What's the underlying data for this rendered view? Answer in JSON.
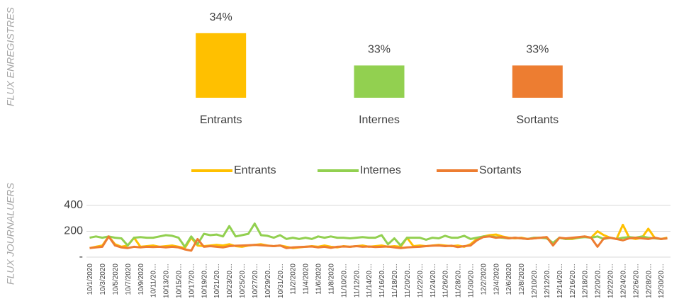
{
  "chart_data": [
    {
      "type": "bar",
      "ylabel": "FLUX ENREGISTRES",
      "categories": [
        "Entrants",
        "Internes",
        "Sortants"
      ],
      "values": [
        34,
        33,
        33
      ],
      "value_labels": [
        "34%",
        "33%",
        "33%"
      ],
      "colors": [
        "#FFC000",
        "#92D050",
        "#ED7D31"
      ],
      "ylim": [
        32,
        34.15
      ]
    },
    {
      "type": "line",
      "ylabel": "FLUX JOURNALUERS",
      "legend": "top",
      "grid": true,
      "ylim": [
        0,
        400
      ],
      "yticks": [
        {
          "value": 0,
          "label": "-"
        },
        200,
        400
      ],
      "categories": [
        "10/1/2020",
        null,
        "10/3/2020",
        null,
        "10/5/2020",
        null,
        "10/7/2020",
        null,
        "10/9/2020",
        null,
        "10/11/20…",
        null,
        "10/13/20…",
        null,
        "10/15/20…",
        null,
        "10/17/20…",
        null,
        "10/19/20…",
        null,
        "10/21/20…",
        null,
        "10/23/20…",
        null,
        "10/25/20…",
        null,
        "10/27/20…",
        null,
        "10/29/20…",
        null,
        "10/31/20…",
        null,
        "11/2/2020",
        null,
        "11/4/2020",
        null,
        "11/6/2020",
        null,
        "11/8/2020",
        null,
        "11/10/20…",
        null,
        "11/12/20…",
        null,
        "11/14/20…",
        null,
        "11/16/20…",
        null,
        "11/18/20…",
        null,
        "11/20/20…",
        null,
        "11/22/20…",
        null,
        "11/24/20…",
        null,
        "11/26/20…",
        null,
        "11/28/20…",
        null,
        "11/30/20…",
        null,
        "12/2/2020",
        null,
        "12/4/2020",
        null,
        "12/6/2020",
        null,
        "12/8/2020",
        null,
        "12/10/20…",
        null,
        "12/12/20…",
        null,
        "12/14/20…",
        null,
        "12/16/20…",
        null,
        "12/18/20…",
        null,
        "12/20/20…",
        null,
        "12/22/20…",
        null,
        "12/24/20…",
        null,
        "12/26/20…",
        null,
        "12/28/20…",
        null,
        "12/30/20…",
        null
      ],
      "series": [
        {
          "name": "Entrants",
          "color": "#FFC000",
          "values": [
            70,
            80,
            90,
            160,
            100,
            80,
            90,
            150,
            80,
            85,
            90,
            80,
            85,
            90,
            80,
            70,
            150,
            90,
            85,
            90,
            95,
            90,
            100,
            85,
            80,
            90,
            95,
            100,
            90,
            85,
            90,
            80,
            70,
            75,
            80,
            85,
            80,
            90,
            80,
            75,
            85,
            80,
            85,
            90,
            80,
            85,
            90,
            80,
            85,
            80,
            150,
            85,
            90,
            85,
            90,
            95,
            90,
            85,
            90,
            80,
            100,
            140,
            160,
            170,
            175,
            160,
            150,
            145,
            150,
            140,
            145,
            150,
            155,
            100,
            150,
            140,
            140,
            150,
            160,
            150,
            200,
            170,
            150,
            140,
            250,
            150,
            140,
            150,
            220,
            150,
            140,
            150
          ]
        },
        {
          "name": "Internes",
          "color": "#92D050",
          "values": [
            150,
            160,
            150,
            160,
            150,
            145,
            90,
            150,
            155,
            150,
            150,
            160,
            170,
            165,
            150,
            80,
            160,
            100,
            180,
            170,
            175,
            160,
            240,
            160,
            170,
            180,
            260,
            170,
            165,
            150,
            170,
            140,
            150,
            140,
            150,
            140,
            160,
            150,
            160,
            150,
            150,
            145,
            150,
            155,
            150,
            150,
            170,
            100,
            145,
            90,
            150,
            150,
            150,
            135,
            150,
            145,
            165,
            150,
            150,
            165,
            140,
            150,
            160,
            160,
            155,
            150,
            145,
            150,
            145,
            140,
            150,
            150,
            145,
            110,
            150,
            140,
            145,
            150,
            155,
            150,
            160,
            140,
            150,
            140,
            150,
            155,
            150,
            160,
            150,
            145,
            140,
            145
          ]
        },
        {
          "name": "Sortants",
          "color": "#ED7D31",
          "values": [
            70,
            75,
            80,
            160,
            90,
            75,
            70,
            80,
            75,
            80,
            78,
            80,
            75,
            80,
            75,
            60,
            50,
            140,
            80,
            85,
            80,
            75,
            85,
            88,
            90,
            92,
            95,
            92,
            88,
            85,
            90,
            70,
            75,
            78,
            80,
            82,
            75,
            80,
            72,
            80,
            82,
            80,
            85,
            80,
            82,
            78,
            80,
            82,
            75,
            70,
            75,
            78,
            80,
            85,
            88,
            90,
            85,
            88,
            78,
            85,
            90,
            130,
            155,
            160,
            150,
            155,
            145,
            150,
            145,
            140,
            145,
            150,
            155,
            90,
            150,
            145,
            150,
            155,
            160,
            150,
            80,
            145,
            150,
            140,
            130,
            145,
            150,
            145,
            140,
            150,
            140,
            145
          ]
        }
      ]
    }
  ]
}
